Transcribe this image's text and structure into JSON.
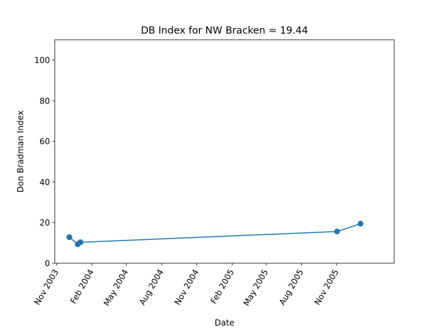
{
  "chart_data": {
    "type": "line",
    "title": "DB Index for NW Bracken = 19.44",
    "xlabel": "Date",
    "ylabel": "Don Bradman Index",
    "xlim": [
      "2003-10-27",
      "2006-03-31"
    ],
    "ylim": [
      0,
      110
    ],
    "x_ticks": [
      {
        "date": "2003-11-01",
        "label": "Nov 2003"
      },
      {
        "date": "2004-02-01",
        "label": "Feb 2004"
      },
      {
        "date": "2004-05-01",
        "label": "May 2004"
      },
      {
        "date": "2004-08-01",
        "label": "Aug 2004"
      },
      {
        "date": "2004-11-01",
        "label": "Nov 2004"
      },
      {
        "date": "2005-02-01",
        "label": "Feb 2005"
      },
      {
        "date": "2005-05-01",
        "label": "May 2005"
      },
      {
        "date": "2005-08-01",
        "label": "Aug 2005"
      },
      {
        "date": "2005-11-01",
        "label": "Nov 2005"
      }
    ],
    "y_ticks": [
      0,
      20,
      40,
      60,
      80,
      100
    ],
    "series": [
      {
        "color": "#1f77b4",
        "points": [
          {
            "x": "2003-12-04",
            "y": 12.8
          },
          {
            "x": "2003-12-26",
            "y": 9.3
          },
          {
            "x": "2004-01-02",
            "y": 10.3
          },
          {
            "x": "2005-11-02",
            "y": 15.6
          },
          {
            "x": "2006-01-02",
            "y": 19.44
          }
        ]
      }
    ]
  }
}
